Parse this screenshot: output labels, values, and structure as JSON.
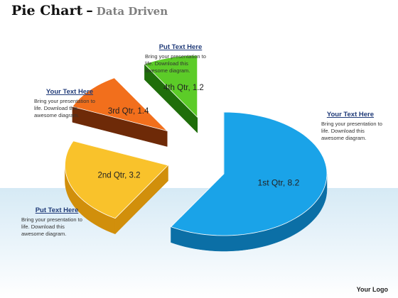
{
  "title": {
    "main": "Pie Chart",
    "dash": "–",
    "sub": "Data Driven"
  },
  "chart_data": {
    "type": "pie",
    "title": "",
    "slices": [
      {
        "label": "1st Qtr",
        "value": 8.2,
        "text": "1st Qtr, 8.2",
        "color": "#1aa3e8",
        "side": "#0b6fa6"
      },
      {
        "label": "2nd Qtr",
        "value": 3.2,
        "text": "2nd Qtr, 3.2",
        "color": "#f9c22b",
        "side": "#d18f0b"
      },
      {
        "label": "3rd Qtr",
        "value": 1.4,
        "text": "3rd Qtr, 1.4",
        "color": "#f26f1c",
        "side": "#6e2a08"
      },
      {
        "label": "4th Qtr",
        "value": 1.2,
        "text": "4th Qtr, 1.2",
        "color": "#5ccc28",
        "side": "#1f6e0a"
      }
    ]
  },
  "callouts": {
    "top_left": {
      "heading": "Your Text Here",
      "lines": [
        "Bring your presentation to",
        "life. Download this",
        "awesome diagram."
      ]
    },
    "top_center": {
      "heading": "Put Text Here",
      "lines": [
        "Bring your presentation to",
        "life. Download this",
        "awesome diagram."
      ]
    },
    "right": {
      "heading": "Your Text Here",
      "lines": [
        "Bring your presentation to",
        "life. Download this",
        "awesome diagram."
      ]
    },
    "bottom_left": {
      "heading": "Put Text Here",
      "lines": [
        "Bring your presentation to",
        "life. Download this",
        "awesome diagram."
      ]
    }
  },
  "logo": "Your Logo"
}
